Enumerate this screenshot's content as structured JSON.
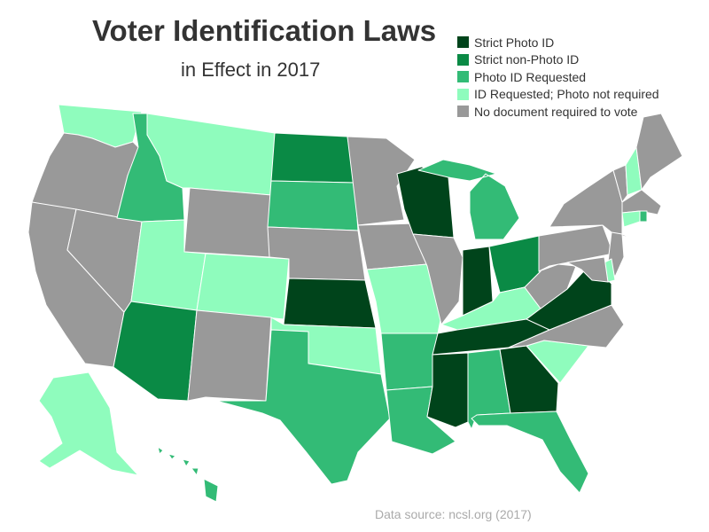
{
  "title": "Voter Identification Laws",
  "subtitle": "in Effect in 2017",
  "source": "Data source: ncsl.org (2017)",
  "legend": [
    {
      "key": "strict_photo",
      "label": "Strict Photo ID",
      "color": "#00441b"
    },
    {
      "key": "strict_nonphoto",
      "label": "Strict non-Photo ID",
      "color": "#0a8a45"
    },
    {
      "key": "photo_requested",
      "label": "Photo ID Requested",
      "color": "#33bb76"
    },
    {
      "key": "id_requested",
      "label": "ID Requested; Photo not required",
      "color": "#8ffcbd"
    },
    {
      "key": "none",
      "label": "No document required to vote",
      "color": "#999999"
    }
  ],
  "states": {
    "WA": "id_requested",
    "OR": "none",
    "CA": "none",
    "NV": "none",
    "ID": "photo_requested",
    "MT": "id_requested",
    "WY": "none",
    "UT": "id_requested",
    "CO": "id_requested",
    "AZ": "strict_nonphoto",
    "NM": "none",
    "ND": "strict_nonphoto",
    "SD": "photo_requested",
    "NE": "none",
    "KS": "strict_photo",
    "OK": "id_requested",
    "TX": "photo_requested",
    "MN": "none",
    "IA": "none",
    "MO": "id_requested",
    "AR": "photo_requested",
    "LA": "photo_requested",
    "WI": "strict_photo",
    "IL": "none",
    "MI": "photo_requested",
    "IN": "strict_photo",
    "OH": "strict_nonphoto",
    "KY": "id_requested",
    "TN": "strict_photo",
    "MS": "strict_photo",
    "AL": "photo_requested",
    "GA": "strict_photo",
    "FL": "photo_requested",
    "SC": "id_requested",
    "NC": "none",
    "VA": "strict_photo",
    "WV": "none",
    "PA": "none",
    "NY": "none",
    "VT": "none",
    "NH": "id_requested",
    "ME": "none",
    "MA": "none",
    "RI": "photo_requested",
    "CT": "id_requested",
    "NJ": "none",
    "DE": "id_requested",
    "MD": "none",
    "AK": "id_requested",
    "HI": "photo_requested"
  }
}
